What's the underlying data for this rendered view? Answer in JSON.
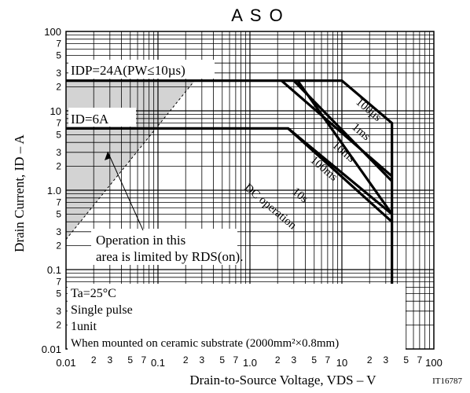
{
  "chart_data": {
    "type": "line",
    "title": "A S O",
    "xlabel": "Drain-to-Source Voltage, VDS  –  V",
    "ylabel": "Drain Current, ID  –  A",
    "scale": "log-log",
    "xlim": [
      0.01,
      100
    ],
    "ylim": [
      0.01,
      100
    ],
    "grid": true,
    "x_major_ticks": [
      "0.01",
      "0.1",
      "1.0",
      "10",
      "100"
    ],
    "x_minor_labels": [
      "2",
      "3",
      "5",
      "7"
    ],
    "y_major_ticks": [
      "100",
      "10",
      "1.0",
      "0.1",
      "0.01"
    ],
    "y_minor_labels": [
      "7",
      "5",
      "3",
      "2"
    ],
    "series": [
      {
        "name": "100µs",
        "x": [
          0.01,
          10,
          35,
          35
        ],
        "y": [
          24,
          24,
          7,
          0.01
        ]
      },
      {
        "name": "1ms",
        "x": [
          2.2,
          35
        ],
        "y": [
          24,
          1.5
        ]
      },
      {
        "name": "10ms",
        "x": [
          3,
          35
        ],
        "y": [
          24,
          1.3
        ]
      },
      {
        "name": "100ms",
        "x": [
          3.3,
          35
        ],
        "y": [
          24,
          0.5
        ]
      },
      {
        "name": "10s",
        "x": [
          0.01,
          2.6,
          35
        ],
        "y": [
          6,
          6,
          0.5
        ]
      },
      {
        "name": "DC operation",
        "x": [
          2.6,
          35
        ],
        "y": [
          6,
          0.4
        ]
      }
    ],
    "shaded_region": {
      "label_lines": [
        "Operation in this",
        "area is limited by RDS(on)."
      ],
      "boundary_x": [
        0.01,
        0.25
      ],
      "boundary_y": [
        0.24,
        24
      ]
    },
    "annotations": {
      "idp": "IDP=24A(PW≤10µs)",
      "id": "ID=6A",
      "curve_labels": [
        "100µs",
        "1ms",
        "10ms",
        "100ms",
        "10s",
        "DC operation"
      ],
      "conditions": [
        "Ta=25°C",
        "Single pulse",
        "1unit",
        "When mounted on ceramic substrate (2000mm²×0.8mm)"
      ],
      "figure_id": "IT16787"
    }
  }
}
